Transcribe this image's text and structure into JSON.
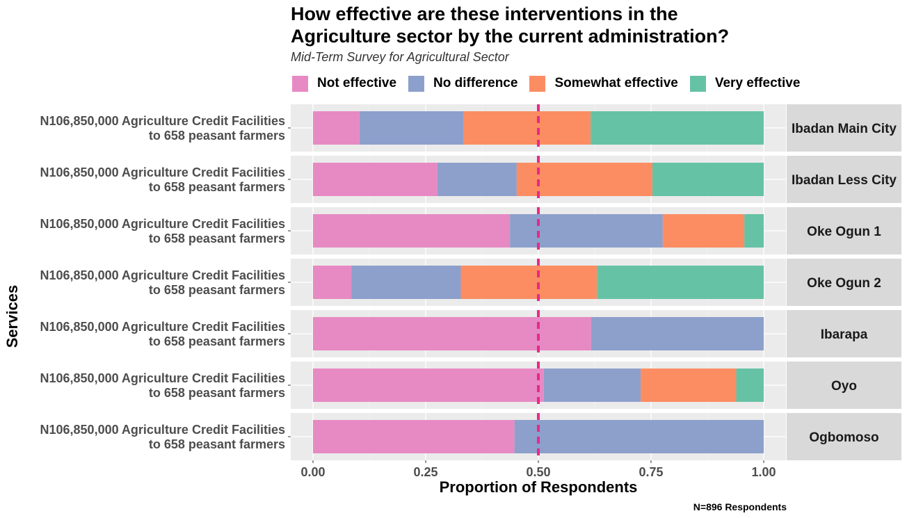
{
  "chart_data": {
    "type": "bar",
    "orientation": "horizontal",
    "stacked": true,
    "title_lines": [
      "How effective are these interventions in the",
      "Agriculture sector by the current administration?"
    ],
    "subtitle": "Mid-Term Survey for Agricultural Sector",
    "xlabel": "Proportion of Respondents",
    "ylabel": "Services",
    "caption": "N=896 Respondents",
    "xlim": [
      0,
      1
    ],
    "x_ticks": [
      "0.00",
      "0.25",
      "0.50",
      "0.75",
      "1.00"
    ],
    "reference_line": {
      "x": 0.5,
      "style": "dashed",
      "color": "#E7298A"
    },
    "legend_position": "top",
    "grid": true,
    "series": [
      {
        "name": "Not effective",
        "color": "#E78AC3"
      },
      {
        "name": "No difference",
        "color": "#8DA0CB"
      },
      {
        "name": "Somewhat effective",
        "color": "#FC8D62"
      },
      {
        "name": "Very effective",
        "color": "#66C2A5"
      }
    ],
    "category_lines": [
      "N106,850,000 Agriculture Credit Facilities",
      "to 658 peasant farmers"
    ],
    "facets": [
      {
        "label": "Ibadan Main City",
        "values": [
          0.103,
          0.231,
          0.282,
          0.384
        ]
      },
      {
        "label": "Ibadan Less City",
        "values": [
          0.276,
          0.176,
          0.301,
          0.247
        ]
      },
      {
        "label": "Oke Ogun 1",
        "values": [
          0.437,
          0.339,
          0.181,
          0.043
        ]
      },
      {
        "label": "Oke Ogun 2",
        "values": [
          0.085,
          0.243,
          0.302,
          0.37
        ]
      },
      {
        "label": "Ibarapa",
        "values": [
          0.617,
          0.383,
          0,
          0
        ]
      },
      {
        "label": "Oyo",
        "values": [
          0.512,
          0.215,
          0.212,
          0.061
        ]
      },
      {
        "label": "Ogbomoso",
        "values": [
          0.447,
          0.553,
          0,
          0
        ]
      }
    ]
  }
}
